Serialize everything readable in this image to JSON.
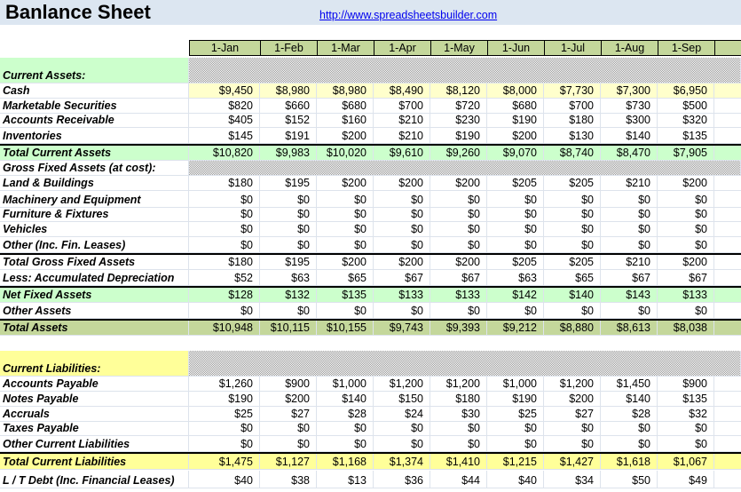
{
  "header": {
    "title": "Banlance Sheet",
    "link": "http://www.spreadsheetsbuilder.com"
  },
  "table": {
    "columns": [
      "1-Jan",
      "1-Feb",
      "1-Mar",
      "1-Apr",
      "1-May",
      "1-Jun",
      "1-Jul",
      "1-Aug",
      "1-Sep"
    ],
    "rows": [
      {
        "label": "Current Assets:"
      },
      {
        "label": "Cash",
        "cells": [
          "$9,450",
          "$8,980",
          "$8,980",
          "$8,490",
          "$8,120",
          "$8,000",
          "$7,730",
          "$7,300",
          "$6,950"
        ]
      },
      {
        "label": "Marketable Securities",
        "cells": [
          "$820",
          "$660",
          "$680",
          "$700",
          "$720",
          "$680",
          "$700",
          "$730",
          "$500"
        ]
      },
      {
        "label": "Accounts Receivable",
        "cells": [
          "$405",
          "$152",
          "$160",
          "$210",
          "$230",
          "$190",
          "$180",
          "$300",
          "$320"
        ]
      },
      {
        "label": "Inventories",
        "cells": [
          "$145",
          "$191",
          "$200",
          "$210",
          "$190",
          "$200",
          "$130",
          "$140",
          "$135"
        ]
      },
      {
        "label": "Total Current Assets",
        "cells": [
          "$10,820",
          "$9,983",
          "$10,020",
          "$9,610",
          "$9,260",
          "$9,070",
          "$8,740",
          "$8,470",
          "$7,905"
        ]
      },
      {
        "label": "Gross Fixed Assets (at cost):"
      },
      {
        "label": "Land & Buildings",
        "cells": [
          "$180",
          "$195",
          "$200",
          "$200",
          "$200",
          "$205",
          "$205",
          "$210",
          "$200"
        ]
      },
      {
        "label": "Machinery and Equipment",
        "cells": [
          "$0",
          "$0",
          "$0",
          "$0",
          "$0",
          "$0",
          "$0",
          "$0",
          "$0"
        ]
      },
      {
        "label": "Furniture & Fixtures",
        "cells": [
          "$0",
          "$0",
          "$0",
          "$0",
          "$0",
          "$0",
          "$0",
          "$0",
          "$0"
        ]
      },
      {
        "label": "Vehicles",
        "cells": [
          "$0",
          "$0",
          "$0",
          "$0",
          "$0",
          "$0",
          "$0",
          "$0",
          "$0"
        ]
      },
      {
        "label": "Other (Inc. Fin. Leases)",
        "cells": [
          "$0",
          "$0",
          "$0",
          "$0",
          "$0",
          "$0",
          "$0",
          "$0",
          "$0"
        ]
      },
      {
        "label": "Total Gross Fixed Assets",
        "cells": [
          "$180",
          "$195",
          "$200",
          "$200",
          "$200",
          "$205",
          "$205",
          "$210",
          "$200"
        ]
      },
      {
        "label": "Less:  Accumulated Depreciation",
        "cells": [
          "$52",
          "$63",
          "$65",
          "$67",
          "$67",
          "$63",
          "$65",
          "$67",
          "$67"
        ]
      },
      {
        "label": "Net Fixed Assets",
        "cells": [
          "$128",
          "$132",
          "$135",
          "$133",
          "$133",
          "$142",
          "$140",
          "$143",
          "$133"
        ]
      },
      {
        "label": "Other Assets",
        "cells": [
          "$0",
          "$0",
          "$0",
          "$0",
          "$0",
          "$0",
          "$0",
          "$0",
          "$0"
        ]
      },
      {
        "label": "Total Assets",
        "cells": [
          "$10,948",
          "$10,115",
          "$10,155",
          "$9,743",
          "$9,393",
          "$9,212",
          "$8,880",
          "$8,613",
          "$8,038"
        ]
      },
      {
        "label": "Current Liabilities:"
      },
      {
        "label": "Accounts Payable",
        "cells": [
          "$1,260",
          "$900",
          "$1,000",
          "$1,200",
          "$1,200",
          "$1,000",
          "$1,200",
          "$1,450",
          "$900"
        ]
      },
      {
        "label": "Notes Payable",
        "cells": [
          "$190",
          "$200",
          "$140",
          "$150",
          "$180",
          "$190",
          "$200",
          "$140",
          "$135"
        ]
      },
      {
        "label": "Accruals",
        "cells": [
          "$25",
          "$27",
          "$28",
          "$24",
          "$30",
          "$25",
          "$27",
          "$28",
          "$32"
        ]
      },
      {
        "label": "Taxes Payable",
        "cells": [
          "$0",
          "$0",
          "$0",
          "$0",
          "$0",
          "$0",
          "$0",
          "$0",
          "$0"
        ]
      },
      {
        "label": "Other Current Liabilities",
        "cells": [
          "$0",
          "$0",
          "$0",
          "$0",
          "$0",
          "$0",
          "$0",
          "$0",
          "$0"
        ]
      },
      {
        "label": "Total Current Liabilities",
        "cells": [
          "$1,475",
          "$1,127",
          "$1,168",
          "$1,374",
          "$1,410",
          "$1,215",
          "$1,427",
          "$1,618",
          "$1,067"
        ]
      },
      {
        "label": "L / T Debt (Inc. Financial Leases)",
        "cells": [
          "$40",
          "$38",
          "$13",
          "$36",
          "$44",
          "$40",
          "$34",
          "$50",
          "$49"
        ]
      }
    ]
  }
}
